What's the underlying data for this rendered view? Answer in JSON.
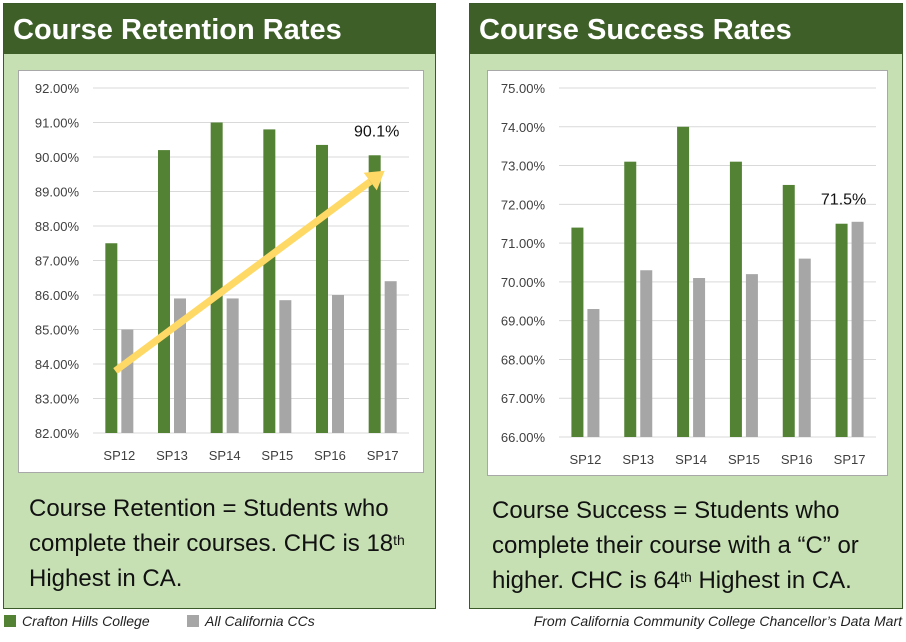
{
  "colors": {
    "panel_bg": "#c6e0b4",
    "title_bg": "#3e5f28",
    "chc": "#548235",
    "ca": "#a6a6a6",
    "arrow": "#ffd966"
  },
  "left_panel": {
    "title": "Course Retention Rates",
    "desc_pre": "Course Retention = Students who complete their courses. CHC is 18",
    "desc_sup": "th",
    "desc_post": " Highest in CA."
  },
  "right_panel": {
    "title": "Course Success Rates",
    "desc_pre": "Course Success = Students who complete their course with a “C” or higher. CHC is 64",
    "desc_sup": "th",
    "desc_post": " Highest in CA."
  },
  "legend": {
    "chc": "Crafton Hills College",
    "ca": "All California CCs"
  },
  "source": "From California Community College Chancellor’s Data Mart",
  "chart_data": [
    {
      "type": "bar",
      "categories": [
        "SP12",
        "SP13",
        "SP14",
        "SP15",
        "SP16",
        "SP17"
      ],
      "series": [
        {
          "name": "Crafton Hills College",
          "values": [
            87.5,
            90.2,
            91.0,
            90.8,
            90.35,
            90.05
          ]
        },
        {
          "name": "All California CCs",
          "values": [
            85.0,
            85.9,
            85.9,
            85.85,
            86.0,
            86.4
          ]
        }
      ],
      "ylim": [
        82,
        92
      ],
      "yticks": [
        "82.00%",
        "83.00%",
        "84.00%",
        "85.00%",
        "86.00%",
        "87.00%",
        "88.00%",
        "89.00%",
        "90.00%",
        "91.00%",
        "92.00%"
      ],
      "annotation": "90.1%",
      "trend_arrow": {
        "from": [
          "SP12",
          83.8
        ],
        "to": [
          "SP17",
          89.6
        ]
      },
      "grid": true
    },
    {
      "type": "bar",
      "categories": [
        "SP12",
        "SP13",
        "SP14",
        "SP15",
        "SP16",
        "SP17"
      ],
      "series": [
        {
          "name": "Crafton Hills College",
          "values": [
            71.4,
            73.1,
            74.0,
            73.1,
            72.5,
            71.5
          ]
        },
        {
          "name": "All California CCs",
          "values": [
            69.3,
            70.3,
            70.1,
            70.2,
            70.6,
            71.55
          ]
        }
      ],
      "ylim": [
        66,
        75
      ],
      "yticks": [
        "66.00%",
        "67.00%",
        "68.00%",
        "69.00%",
        "70.00%",
        "71.00%",
        "72.00%",
        "73.00%",
        "74.00%",
        "75.00%"
      ],
      "annotation": "71.5%",
      "grid": true
    }
  ]
}
